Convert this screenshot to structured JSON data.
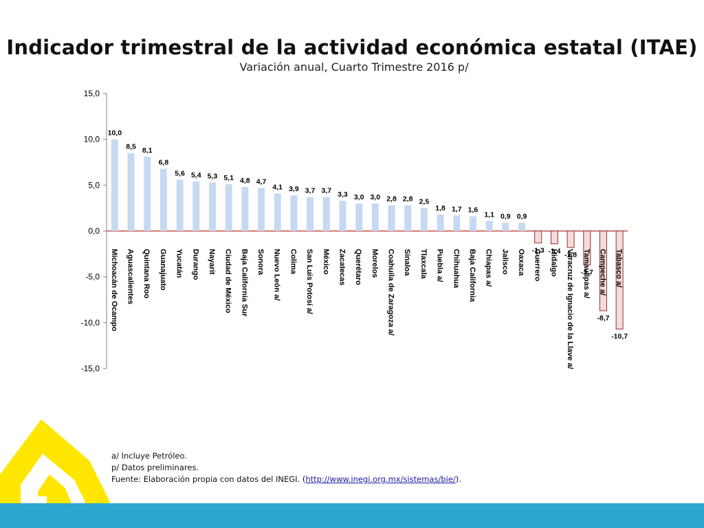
{
  "title": "Indicador trimestral de la actividad económica estatal (ITAE)",
  "subtitle": "Variación anual,  Cuarto Trimestre 2016 p/",
  "colors": {
    "positive_fill": "#c6d9f1",
    "negative_fill": "#f2dcdb",
    "negative_stroke": "#9b2d2d",
    "zero_line": "#c0504d",
    "axis": "#808080",
    "band": "#2aa7cf",
    "logo": "#ffe600"
  },
  "notes": {
    "line1": "a/ Incluye Petróleo.",
    "line2": "p/ Datos preliminares.",
    "source_prefix": "Fuente: Elaboración propia con datos del INEGI. (",
    "source_link": "http://www.inegi.org.mx/sistemas/bie/",
    "source_suffix": ")."
  },
  "chart_data": {
    "type": "bar",
    "categories": [
      "Michoacán de Ocampo",
      "Aguascalientes",
      "Quintana Roo",
      "Guanajuato",
      "Yucatán",
      "Durango",
      "Nayarit",
      "Ciudad de México",
      "Baja California Sur",
      "Sonora",
      "Nuevo León a/",
      "Colima",
      "San Luis Potosí a/",
      "México",
      "Zacatecas",
      "Querétaro",
      "Morelos",
      "Coahuila de Zaragoza a/",
      "Sinaloa",
      "Tlaxcala",
      "Puebla a/",
      "Chihuahua",
      "Baja California",
      "Chiapas a/",
      "Jalisco",
      "Oaxaca",
      "Guerrero",
      "Hidalgo",
      "Veracruz de Ignacio de la Llave a/",
      "Tamaulipas a/",
      "Campeche a/",
      "Tabasco a/"
    ],
    "values": [
      10.0,
      8.5,
      8.1,
      6.8,
      5.6,
      5.4,
      5.3,
      5.1,
      4.8,
      4.7,
      4.1,
      3.9,
      3.7,
      3.7,
      3.3,
      3.0,
      3.0,
      2.8,
      2.8,
      2.5,
      1.8,
      1.7,
      1.6,
      1.1,
      0.9,
      0.9,
      -1.3,
      -1.4,
      -1.8,
      -3.7,
      -8.7,
      -10.7
    ],
    "value_labels": [
      "10,0",
      "8,5",
      "8,1",
      "6,8",
      "5,6",
      "5,4",
      "5,3",
      "5,1",
      "4,8",
      "4,7",
      "4,1",
      "3,9",
      "3,7",
      "3,7",
      "3,3",
      "3,0",
      "3,0",
      "2,8",
      "2,8",
      "2,5",
      "1,8",
      "1,7",
      "1,6",
      "1,1",
      "0,9",
      "0,9",
      "-1,3",
      "-1,4",
      "-1,8",
      "-3,7",
      "-8,7",
      "-10,7"
    ],
    "y_ticks": [
      "15,0",
      "10,0",
      "5,0",
      "0,0",
      "-5,0",
      "-10,0",
      "-15,0"
    ],
    "ylim": [
      -15,
      15
    ],
    "xlabel": "",
    "ylabel": "",
    "grid": false,
    "legend": "none"
  }
}
